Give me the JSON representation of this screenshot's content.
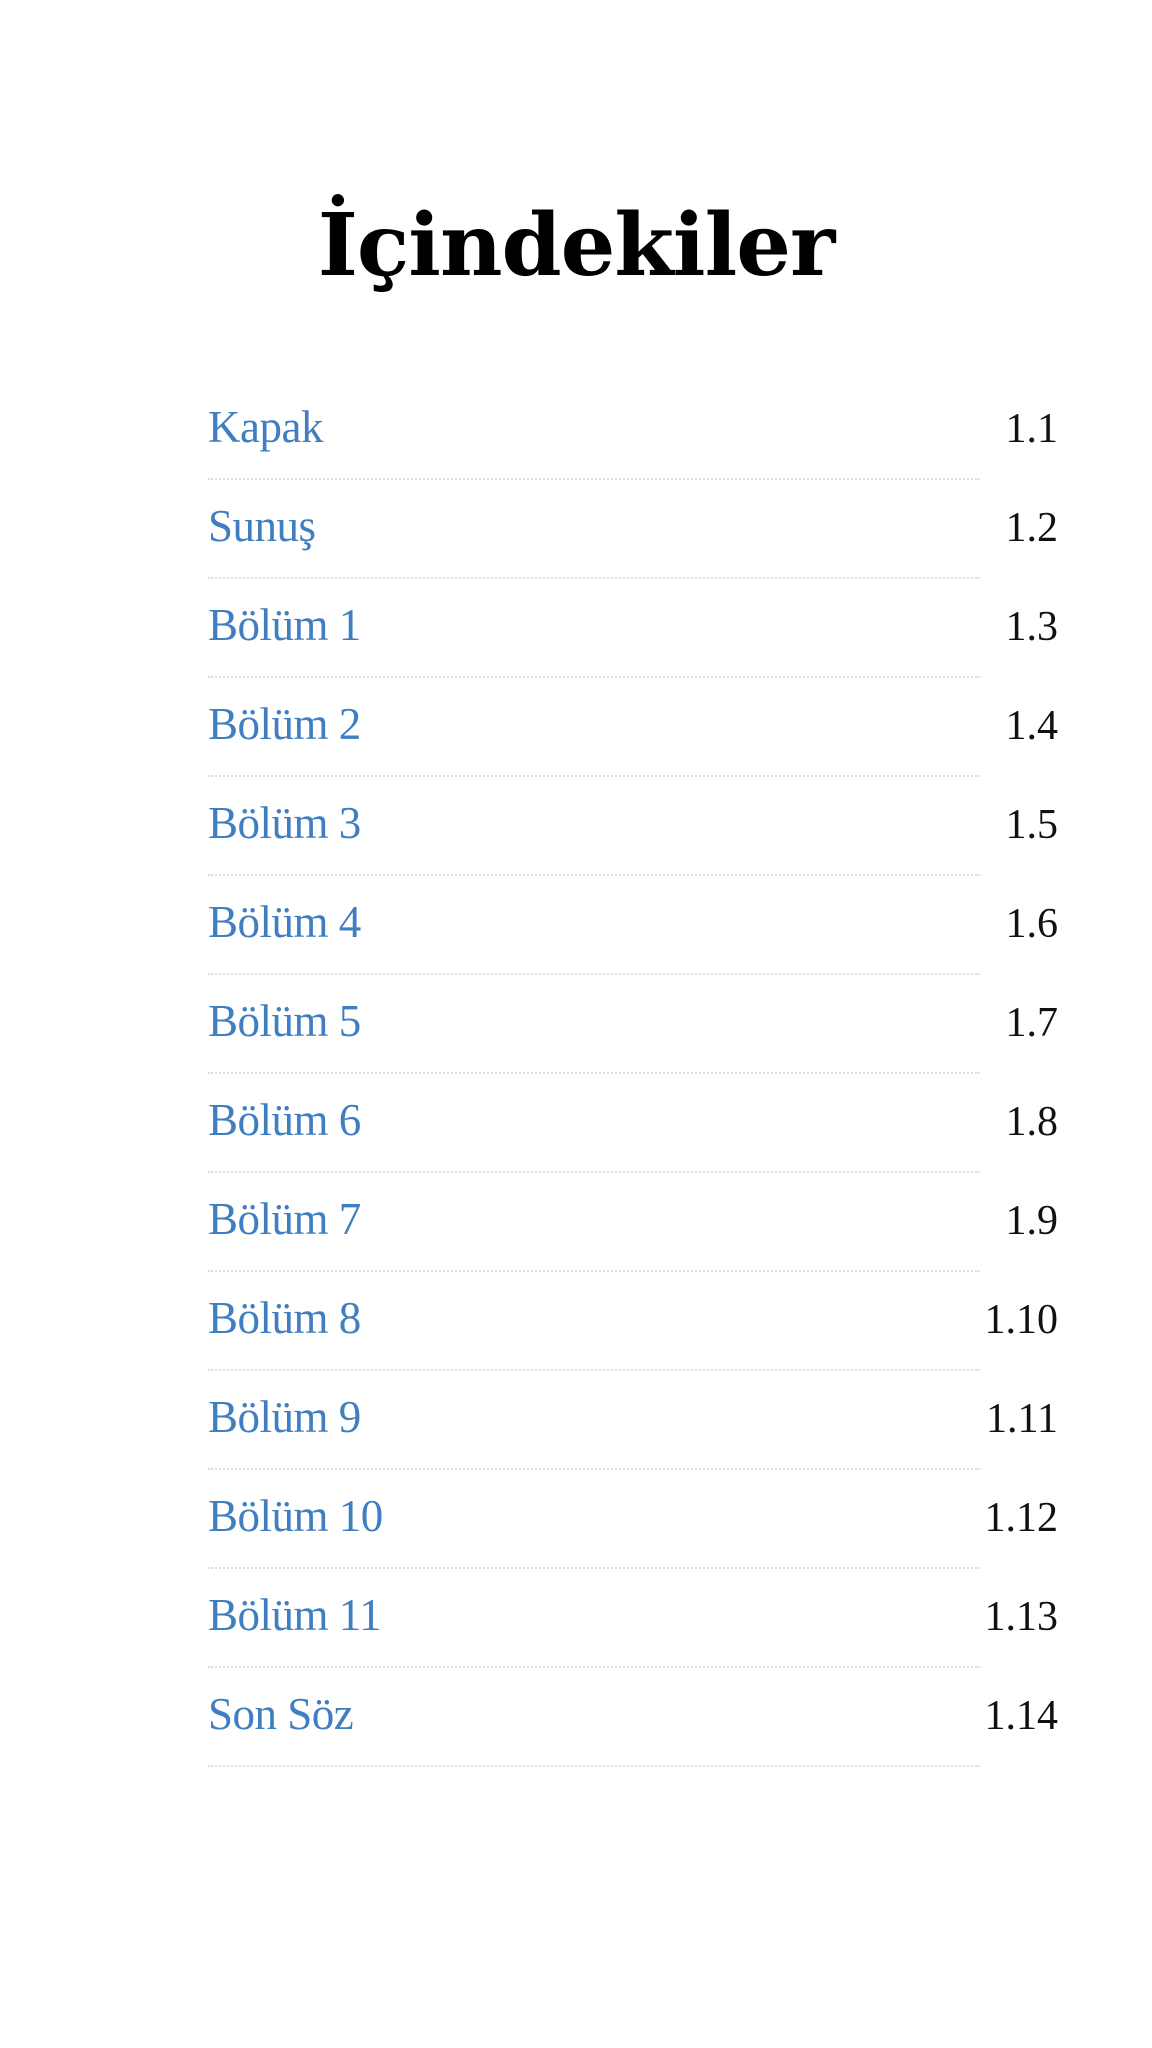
{
  "toc": {
    "title": "İçindekiler",
    "colors": {
      "link": "#3f7ec0",
      "page_number": "#111111",
      "divider": "#dedede",
      "title": "#000000"
    },
    "entries": [
      {
        "label": "Kapak",
        "page": "1.1"
      },
      {
        "label": "Sunuş",
        "page": "1.2"
      },
      {
        "label": "Bölüm 1",
        "page": "1.3"
      },
      {
        "label": "Bölüm 2",
        "page": "1.4"
      },
      {
        "label": "Bölüm 3",
        "page": "1.5"
      },
      {
        "label": "Bölüm 4",
        "page": "1.6"
      },
      {
        "label": "Bölüm 5",
        "page": "1.7"
      },
      {
        "label": "Bölüm 6",
        "page": "1.8"
      },
      {
        "label": "Bölüm 7",
        "page": "1.9"
      },
      {
        "label": "Bölüm 8",
        "page": "1.10"
      },
      {
        "label": "Bölüm 9",
        "page": "1.11"
      },
      {
        "label": "Bölüm 10",
        "page": "1.12"
      },
      {
        "label": "Bölüm 11",
        "page": "1.13"
      },
      {
        "label": "Son Söz",
        "page": "1.14"
      }
    ]
  }
}
